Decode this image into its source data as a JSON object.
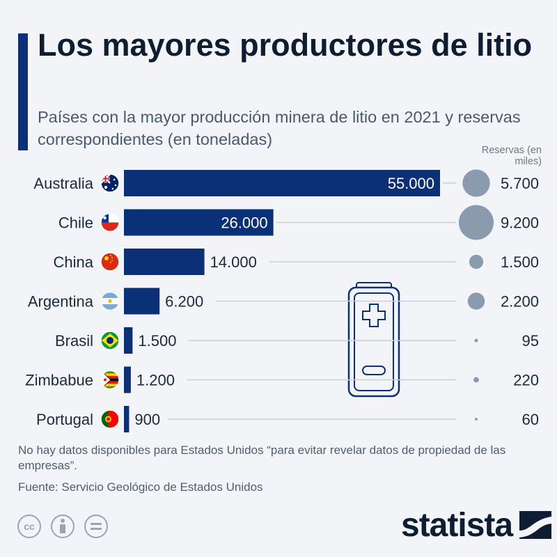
{
  "header": {
    "title": "Los mayores productores de litio",
    "subtitle": "Países con la mayor producción minera de litio en 2021 y reservas correspondientes (en toneladas)",
    "reserves_label": "Reservas (en miles)"
  },
  "chart_data": {
    "type": "bar",
    "orientation": "horizontal",
    "categories": [
      "Australia",
      "Chile",
      "China",
      "Argentina",
      "Brasil",
      "Zimbabue",
      "Portugal"
    ],
    "series": [
      {
        "values": [
          55000,
          26000,
          14000,
          6200,
          1500,
          1200,
          900
        ]
      }
    ],
    "value_labels": [
      "55.000",
      "26.000",
      "14.000",
      "6.200",
      "1.500",
      "1.200",
      "900"
    ],
    "reserves": {
      "values": [
        5700,
        9200,
        1500,
        2200,
        95,
        220,
        60
      ],
      "labels": [
        "5.700",
        "9.200",
        "1.500",
        "2.200",
        "95",
        "220",
        "60"
      ]
    },
    "xlim": [
      0,
      55000
    ],
    "grid": false,
    "colors": {
      "bar": "#0a3178",
      "bubble": "#8a9bad",
      "leader": "#c8d0da"
    }
  },
  "footer": {
    "note": "No hay datos disponibles para Estados Unidos “para evitar revelar datos de propiedad de las empresas”.",
    "source": "Fuente: Servicio Geológico de Estados Unidos",
    "logo": "statista",
    "license_icons": [
      "cc-icon",
      "attribution-icon",
      "no-derivatives-icon"
    ]
  }
}
